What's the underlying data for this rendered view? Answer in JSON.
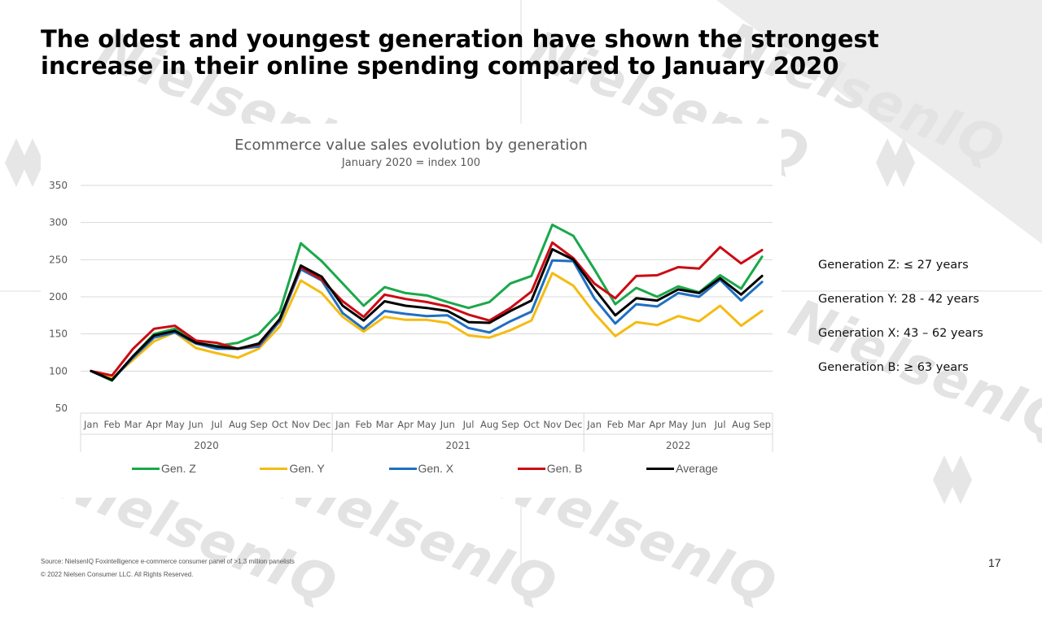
{
  "slide": {
    "title": "The oldest and youngest generation have shown the strongest increase in their online spending compared to January 2020",
    "source": "Source: NielsenIQ Foxintelligence e-commerce consumer panel of >1.3 million panelists",
    "copyright": "© 2022 Nielsen Consumer LLC. All Rights Reserved.",
    "page_number": "17",
    "watermark_text": "NielsenIQ",
    "generation_definitions": [
      "Generation Z: ≤ 27 years",
      "Generation Y: 28 - 42 years",
      "Generation X: 43 – 62 years",
      "Generation B: ≥ 63 years"
    ]
  },
  "chart_data": {
    "type": "line",
    "title": "Ecommerce value sales evolution by generation",
    "subtitle": "January 2020 = index 100",
    "xlabel": "",
    "ylabel": "",
    "ylim": [
      50,
      350
    ],
    "yticks": [
      50,
      100,
      150,
      200,
      250,
      300,
      350
    ],
    "grid": true,
    "legend_position": "bottom",
    "years": [
      "2020",
      "2021",
      "2022"
    ],
    "categories": [
      "Jan",
      "Feb",
      "Mar",
      "Apr",
      "May",
      "Jun",
      "Jul",
      "Aug",
      "Sep",
      "Oct",
      "Nov",
      "Dec",
      "Jan",
      "Feb",
      "Mar",
      "Apr",
      "May",
      "Jun",
      "Jul",
      "Aug",
      "Sep",
      "Oct",
      "Nov",
      "Dec",
      "Jan",
      "Feb",
      "Mar",
      "Apr",
      "May",
      "Jun",
      "Jul",
      "Aug",
      "Sep"
    ],
    "series": [
      {
        "name": "Gen. Z",
        "color": "#1aa84a",
        "values": [
          100,
          87,
          120,
          150,
          157,
          138,
          134,
          138,
          150,
          180,
          272,
          248,
          218,
          188,
          213,
          205,
          202,
          193,
          185,
          193,
          218,
          228,
          297,
          282,
          237,
          190,
          212,
          200,
          214,
          206,
          229,
          211,
          254
        ]
      },
      {
        "name": "Gen. Y",
        "color": "#f5bb12",
        "values": [
          100,
          90,
          115,
          140,
          152,
          131,
          124,
          118,
          130,
          160,
          222,
          205,
          173,
          153,
          173,
          169,
          169,
          165,
          148,
          145,
          155,
          168,
          232,
          215,
          178,
          147,
          166,
          162,
          174,
          167,
          188,
          161,
          181
        ]
      },
      {
        "name": "Gen. X",
        "color": "#1f70c1",
        "values": [
          100,
          88,
          118,
          145,
          152,
          137,
          130,
          130,
          133,
          167,
          237,
          222,
          178,
          157,
          181,
          177,
          174,
          175,
          158,
          152,
          167,
          180,
          249,
          248,
          198,
          164,
          190,
          187,
          205,
          200,
          223,
          195,
          220
        ]
      },
      {
        "name": "Gen. B",
        "color": "#cc0a14",
        "values": [
          100,
          94,
          130,
          157,
          161,
          141,
          138,
          130,
          136,
          170,
          240,
          223,
          194,
          173,
          203,
          197,
          193,
          187,
          176,
          168,
          185,
          207,
          273,
          252,
          218,
          198,
          228,
          229,
          240,
          238,
          267,
          245,
          263
        ]
      },
      {
        "name": "Average",
        "color": "#000000",
        "values": [
          100,
          88,
          120,
          148,
          154,
          138,
          133,
          130,
          137,
          170,
          242,
          227,
          188,
          168,
          194,
          188,
          185,
          181,
          166,
          165,
          181,
          195,
          264,
          250,
          211,
          175,
          198,
          195,
          210,
          205,
          225,
          203,
          228
        ]
      }
    ]
  }
}
